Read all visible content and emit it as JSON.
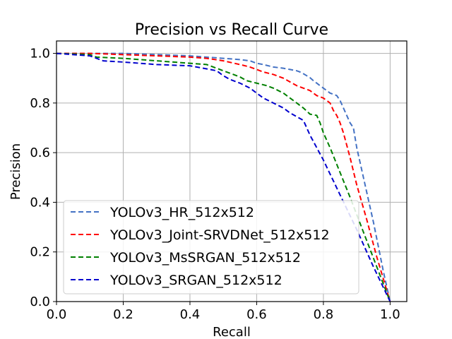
{
  "chart_data": {
    "type": "line",
    "title": "Precision vs Recall Curve",
    "xlabel": "Recall",
    "ylabel": "Precision",
    "xlim": [
      0.0,
      1.05
    ],
    "ylim": [
      0.0,
      1.05
    ],
    "xticks": [
      0.0,
      0.2,
      0.4,
      0.6,
      0.8,
      1.0
    ],
    "yticks": [
      0.0,
      0.2,
      0.4,
      0.6,
      0.8,
      1.0
    ],
    "xtick_labels": [
      "0.0",
      "0.2",
      "0.4",
      "0.6",
      "0.8",
      "1.0"
    ],
    "ytick_labels": [
      "0.0",
      "0.2",
      "0.4",
      "0.6",
      "0.8",
      "1.0"
    ],
    "grid": true,
    "legend_position": "lower-left",
    "series": [
      {
        "name": "YOLOv3_HR_512x512",
        "color": "#4472c4",
        "points": [
          [
            0.0,
            1.0
          ],
          [
            0.1,
            1.0
          ],
          [
            0.2,
            1.0
          ],
          [
            0.3,
            0.995
          ],
          [
            0.4,
            0.99
          ],
          [
            0.5,
            0.98
          ],
          [
            0.55,
            0.975
          ],
          [
            0.58,
            0.97
          ],
          [
            0.6,
            0.96
          ],
          [
            0.62,
            0.955
          ],
          [
            0.65,
            0.945
          ],
          [
            0.68,
            0.94
          ],
          [
            0.7,
            0.935
          ],
          [
            0.72,
            0.93
          ],
          [
            0.73,
            0.925
          ],
          [
            0.74,
            0.918
          ],
          [
            0.75,
            0.91
          ],
          [
            0.76,
            0.902
          ],
          [
            0.77,
            0.89
          ],
          [
            0.78,
            0.88
          ],
          [
            0.8,
            0.86
          ],
          [
            0.82,
            0.84
          ],
          [
            0.84,
            0.83
          ],
          [
            0.85,
            0.81
          ],
          [
            0.86,
            0.78
          ],
          [
            0.87,
            0.75
          ],
          [
            0.88,
            0.72
          ],
          [
            0.89,
            0.7
          ],
          [
            0.9,
            0.62
          ],
          [
            0.92,
            0.5
          ],
          [
            0.95,
            0.32
          ],
          [
            0.98,
            0.12
          ],
          [
            1.0,
            0.0
          ]
        ]
      },
      {
        "name": "YOLOv3_Joint-SRVDNet_512x512",
        "color": "#ff0000",
        "points": [
          [
            0.0,
            1.0
          ],
          [
            0.1,
            1.0
          ],
          [
            0.2,
            0.995
          ],
          [
            0.3,
            0.99
          ],
          [
            0.4,
            0.985
          ],
          [
            0.45,
            0.98
          ],
          [
            0.5,
            0.97
          ],
          [
            0.55,
            0.955
          ],
          [
            0.58,
            0.945
          ],
          [
            0.6,
            0.935
          ],
          [
            0.62,
            0.925
          ],
          [
            0.65,
            0.915
          ],
          [
            0.68,
            0.9
          ],
          [
            0.7,
            0.885
          ],
          [
            0.72,
            0.87
          ],
          [
            0.74,
            0.86
          ],
          [
            0.76,
            0.85
          ],
          [
            0.78,
            0.83
          ],
          [
            0.8,
            0.82
          ],
          [
            0.82,
            0.8
          ],
          [
            0.83,
            0.77
          ],
          [
            0.84,
            0.75
          ],
          [
            0.85,
            0.72
          ],
          [
            0.86,
            0.68
          ],
          [
            0.88,
            0.58
          ],
          [
            0.9,
            0.47
          ],
          [
            0.93,
            0.33
          ],
          [
            0.96,
            0.18
          ],
          [
            1.0,
            0.0
          ]
        ]
      },
      {
        "name": "YOLOv3_MsSRGAN_512x512",
        "color": "#008000",
        "points": [
          [
            0.0,
            1.0
          ],
          [
            0.1,
            0.995
          ],
          [
            0.12,
            0.985
          ],
          [
            0.2,
            0.98
          ],
          [
            0.3,
            0.97
          ],
          [
            0.4,
            0.96
          ],
          [
            0.45,
            0.955
          ],
          [
            0.48,
            0.94
          ],
          [
            0.5,
            0.93
          ],
          [
            0.52,
            0.92
          ],
          [
            0.55,
            0.905
          ],
          [
            0.57,
            0.89
          ],
          [
            0.6,
            0.88
          ],
          [
            0.63,
            0.87
          ],
          [
            0.65,
            0.86
          ],
          [
            0.68,
            0.84
          ],
          [
            0.7,
            0.82
          ],
          [
            0.72,
            0.8
          ],
          [
            0.74,
            0.78
          ],
          [
            0.76,
            0.755
          ],
          [
            0.78,
            0.75
          ],
          [
            0.79,
            0.72
          ],
          [
            0.8,
            0.68
          ],
          [
            0.82,
            0.62
          ],
          [
            0.85,
            0.52
          ],
          [
            0.88,
            0.42
          ],
          [
            0.92,
            0.28
          ],
          [
            0.96,
            0.14
          ],
          [
            1.0,
            0.0
          ]
        ]
      },
      {
        "name": "YOLOv3_SRGAN_512x512",
        "color": "#0000cd",
        "points": [
          [
            0.0,
            1.0
          ],
          [
            0.1,
            0.99
          ],
          [
            0.14,
            0.97
          ],
          [
            0.2,
            0.965
          ],
          [
            0.3,
            0.955
          ],
          [
            0.4,
            0.95
          ],
          [
            0.44,
            0.94
          ],
          [
            0.48,
            0.93
          ],
          [
            0.5,
            0.91
          ],
          [
            0.52,
            0.895
          ],
          [
            0.55,
            0.88
          ],
          [
            0.58,
            0.86
          ],
          [
            0.6,
            0.84
          ],
          [
            0.62,
            0.82
          ],
          [
            0.65,
            0.8
          ],
          [
            0.68,
            0.78
          ],
          [
            0.7,
            0.76
          ],
          [
            0.72,
            0.745
          ],
          [
            0.74,
            0.73
          ],
          [
            0.75,
            0.7
          ],
          [
            0.76,
            0.67
          ],
          [
            0.8,
            0.57
          ],
          [
            0.85,
            0.43
          ],
          [
            0.9,
            0.29
          ],
          [
            0.95,
            0.14
          ],
          [
            1.0,
            0.0
          ]
        ]
      }
    ]
  }
}
